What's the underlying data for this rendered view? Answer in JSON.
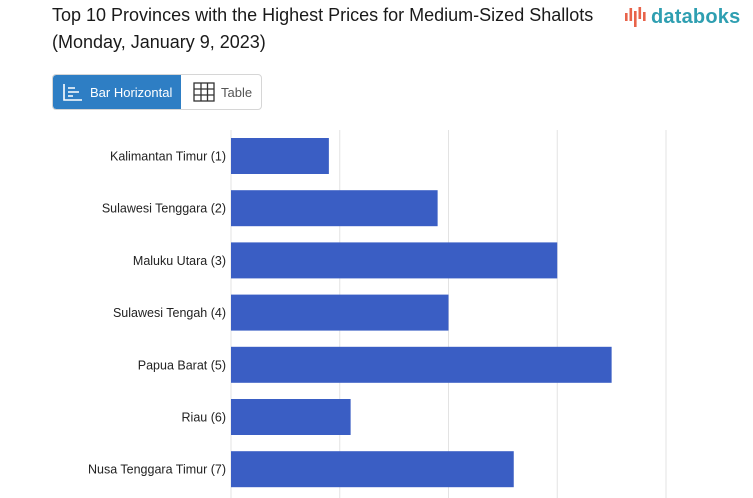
{
  "title": "Top 10 Provinces with the Highest Prices for Medium-Sized Shallots (Monday, January 9, 2023)",
  "brand": {
    "name": "databoks",
    "color": "#2f9fb1",
    "accent": "#e8634a"
  },
  "view_tabs": {
    "active": "Bar Horizontal",
    "inactive": "Table",
    "active_icon": "bar-chart-icon",
    "inactive_icon": "table-grid-icon",
    "active_color": "#2e7ec4"
  },
  "chart_data": {
    "type": "bar",
    "orientation": "horizontal",
    "categories": [
      "Kalimantan Timur (1)",
      "Sulawesi Tenggara (2)",
      "Maluku Utara (3)",
      "Sulawesi Tengah (4)",
      "Papua Barat (5)",
      "Riau (6)",
      "Nusa Tenggara Timur (7)"
    ],
    "values": [
      0.9,
      1.9,
      3.0,
      2.0,
      3.5,
      1.1,
      2.6
    ],
    "xlim": [
      0,
      4
    ],
    "grid": true,
    "bar_color": "#3a5ec4"
  }
}
